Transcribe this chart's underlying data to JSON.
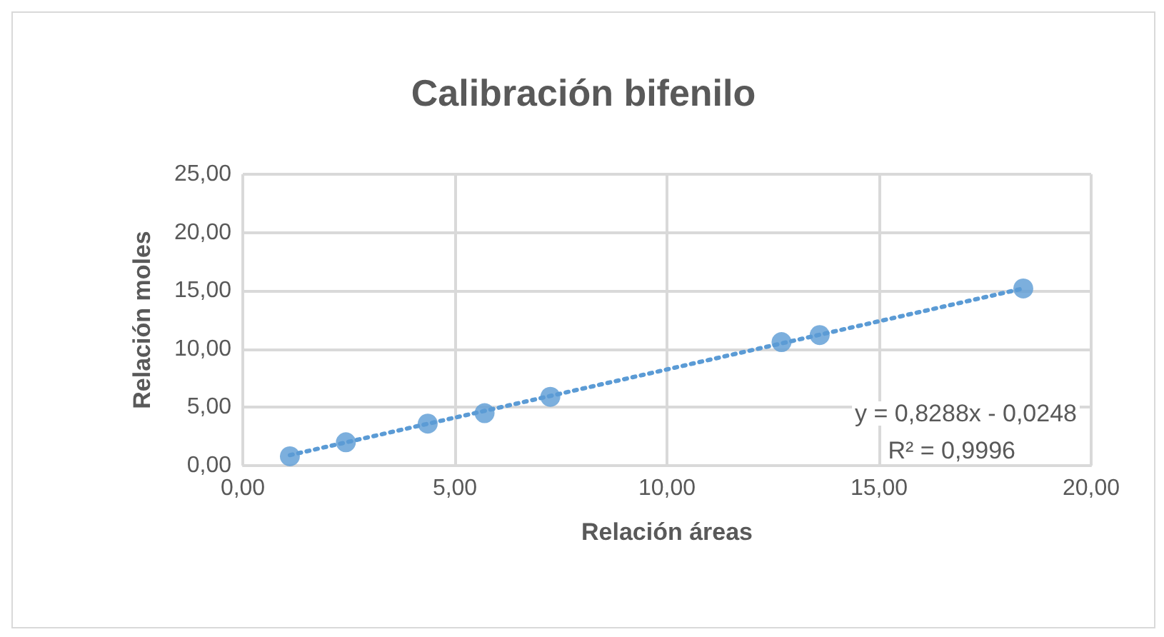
{
  "chart_data": {
    "type": "scatter",
    "title": "Calibración bifenilo",
    "xlabel": "Relación áreas",
    "ylabel": "Relación moles",
    "series": [
      {
        "type": "scatter",
        "color": "#5b9bd5",
        "x": [
          1.11,
          2.43,
          4.36,
          5.7,
          7.25,
          12.7,
          13.6,
          18.4
        ],
        "values": [
          0.8,
          2.0,
          3.6,
          4.5,
          5.9,
          10.6,
          11.2,
          15.2
        ],
        "marker": "circle"
      },
      {
        "type": "line",
        "color": "#5b9bd5",
        "x": [
          1.11,
          18.4
        ],
        "values": [
          0.9,
          15.2
        ],
        "line_style": "dotted",
        "marker": "none"
      }
    ],
    "xlim": [
      0,
      20
    ],
    "xticks": [
      {
        "value": 0,
        "label": "0,00"
      },
      {
        "value": 5,
        "label": "5,00"
      },
      {
        "value": 10,
        "label": "10,00"
      },
      {
        "value": 15,
        "label": "15,00"
      },
      {
        "value": 20,
        "label": "20,00"
      }
    ],
    "ylim": [
      0,
      25
    ],
    "yticks": [
      {
        "value": 0,
        "label": "0,00"
      },
      {
        "value": 5,
        "label": "5,00"
      },
      {
        "value": 10,
        "label": "10,00"
      },
      {
        "value": 15,
        "label": "15,00"
      },
      {
        "value": 20,
        "label": "20,00"
      },
      {
        "value": 25,
        "label": "25,00"
      }
    ],
    "grid": true,
    "annotations": [
      "y = 0,8288x - 0,0248",
      "R² = 0,9996"
    ]
  }
}
